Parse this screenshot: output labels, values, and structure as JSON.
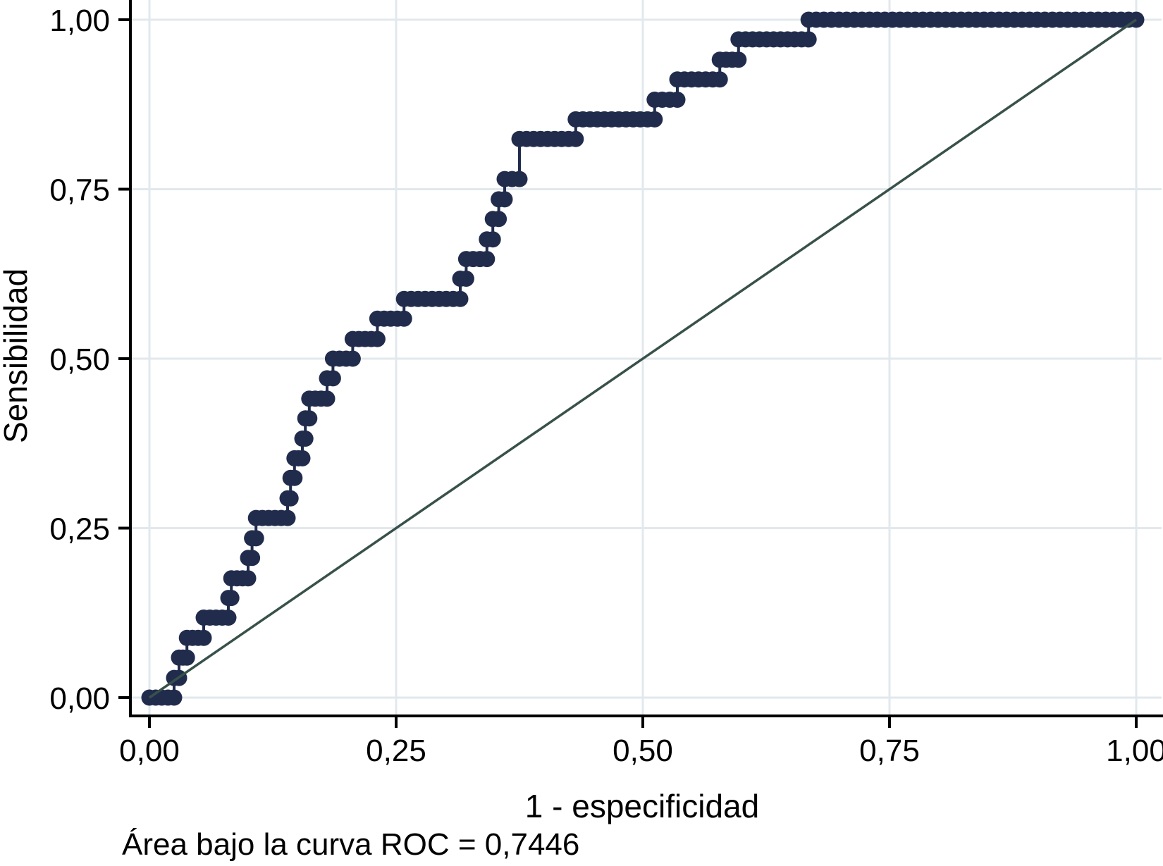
{
  "figure": {
    "title": "",
    "background": "#ffffff"
  },
  "chart_data": {
    "type": "line",
    "subtype": "roc-step-curve",
    "title": "",
    "xlabel": "1 - especificidad",
    "ylabel": "Sensibilidad",
    "annotation": "Área bajo la curva ROC = 0,7446",
    "auc": 0.7446,
    "xlim": [
      0,
      1
    ],
    "ylim": [
      0,
      1
    ],
    "grid": true,
    "legend": false,
    "x_ticks": {
      "values": [
        0,
        0.25,
        0.5,
        0.75,
        1
      ],
      "labels": [
        "0,00",
        "0,25",
        "0,50",
        "0,75",
        "1,00"
      ]
    },
    "y_ticks": {
      "values": [
        0,
        0.25,
        0.5,
        0.75,
        1
      ],
      "labels": [
        "0,00",
        "0,25",
        "0,50",
        "0,75",
        "1,00"
      ]
    },
    "series": [
      {
        "name": "roc_curve",
        "style": "step-with-markers",
        "color": "#212c4d",
        "points": [
          [
            0.0,
            0.0
          ],
          [
            0.025,
            0.0
          ],
          [
            0.025,
            0.029
          ],
          [
            0.03,
            0.029
          ],
          [
            0.03,
            0.059
          ],
          [
            0.038,
            0.059
          ],
          [
            0.038,
            0.088
          ],
          [
            0.055,
            0.088
          ],
          [
            0.055,
            0.118
          ],
          [
            0.08,
            0.118
          ],
          [
            0.08,
            0.147
          ],
          [
            0.083,
            0.147
          ],
          [
            0.083,
            0.176
          ],
          [
            0.1,
            0.176
          ],
          [
            0.1,
            0.206
          ],
          [
            0.104,
            0.206
          ],
          [
            0.104,
            0.235
          ],
          [
            0.108,
            0.235
          ],
          [
            0.108,
            0.265
          ],
          [
            0.14,
            0.265
          ],
          [
            0.14,
            0.294
          ],
          [
            0.143,
            0.294
          ],
          [
            0.143,
            0.324
          ],
          [
            0.147,
            0.324
          ],
          [
            0.147,
            0.353
          ],
          [
            0.155,
            0.353
          ],
          [
            0.155,
            0.382
          ],
          [
            0.158,
            0.382
          ],
          [
            0.158,
            0.412
          ],
          [
            0.162,
            0.412
          ],
          [
            0.162,
            0.441
          ],
          [
            0.18,
            0.441
          ],
          [
            0.18,
            0.471
          ],
          [
            0.186,
            0.471
          ],
          [
            0.186,
            0.5
          ],
          [
            0.206,
            0.5
          ],
          [
            0.206,
            0.529
          ],
          [
            0.231,
            0.529
          ],
          [
            0.231,
            0.559
          ],
          [
            0.258,
            0.559
          ],
          [
            0.258,
            0.588
          ],
          [
            0.315,
            0.588
          ],
          [
            0.315,
            0.618
          ],
          [
            0.321,
            0.618
          ],
          [
            0.321,
            0.647
          ],
          [
            0.342,
            0.647
          ],
          [
            0.342,
            0.676
          ],
          [
            0.348,
            0.676
          ],
          [
            0.348,
            0.706
          ],
          [
            0.354,
            0.706
          ],
          [
            0.354,
            0.735
          ],
          [
            0.36,
            0.735
          ],
          [
            0.36,
            0.765
          ],
          [
            0.375,
            0.765
          ],
          [
            0.375,
            0.824
          ],
          [
            0.432,
            0.824
          ],
          [
            0.432,
            0.853
          ],
          [
            0.512,
            0.853
          ],
          [
            0.512,
            0.882
          ],
          [
            0.535,
            0.882
          ],
          [
            0.535,
            0.912
          ],
          [
            0.578,
            0.912
          ],
          [
            0.578,
            0.941
          ],
          [
            0.597,
            0.941
          ],
          [
            0.597,
            0.971
          ],
          [
            0.668,
            0.971
          ],
          [
            0.668,
            1.0
          ],
          [
            1.0,
            1.0
          ]
        ]
      },
      {
        "name": "reference_diagonal",
        "style": "line",
        "color": "#38514a",
        "points": [
          [
            0,
            0
          ],
          [
            1,
            1
          ]
        ]
      }
    ],
    "colors": {
      "curve": "#212c4d",
      "reference": "#38514a",
      "grid": "#e2e8ed",
      "axis": "#000000",
      "background": "#ffffff"
    }
  }
}
